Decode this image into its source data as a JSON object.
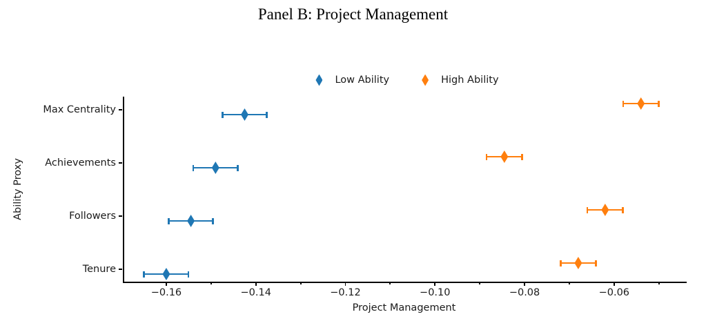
{
  "chart_data": {
    "type": "scatter",
    "title": "Panel B: Project Management",
    "xlabel": "Project Management",
    "ylabel": "Ability Proxy",
    "categories": [
      "Max Centrality",
      "Achievements",
      "Followers",
      "Tenure"
    ],
    "xlim": [
      -0.1697,
      -0.0441
    ],
    "xticks": [
      {
        "value": -0.16,
        "label": "−0.16"
      },
      {
        "value": -0.14,
        "label": "−0.14"
      },
      {
        "value": -0.12,
        "label": "−0.12"
      },
      {
        "value": -0.1,
        "label": "−0.10"
      },
      {
        "value": -0.08,
        "label": "−0.08"
      },
      {
        "value": -0.06,
        "label": "−0.06"
      }
    ],
    "xminorticks": [
      -0.15,
      -0.13,
      -0.11,
      -0.09,
      -0.07,
      -0.05
    ],
    "grid": false,
    "legend_position": "top-center",
    "marker_style": "thin-diamond",
    "series": [
      {
        "name": "Low Ability",
        "color": "#1f77b4",
        "points": [
          {
            "category": "Max Centrality",
            "value": -0.1425,
            "ci_low": -0.1475,
            "ci_high": -0.1375
          },
          {
            "category": "Achievements",
            "value": -0.149,
            "ci_low": -0.154,
            "ci_high": -0.144
          },
          {
            "category": "Followers",
            "value": -0.1545,
            "ci_low": -0.1595,
            "ci_high": -0.1495
          },
          {
            "category": "Tenure",
            "value": -0.16,
            "ci_low": -0.165,
            "ci_high": -0.155
          }
        ]
      },
      {
        "name": "High Ability",
        "color": "#ff7f0e",
        "points": [
          {
            "category": "Max Centrality",
            "value": -0.054,
            "ci_low": -0.058,
            "ci_high": -0.05
          },
          {
            "category": "Achievements",
            "value": -0.0845,
            "ci_low": -0.0885,
            "ci_high": -0.0805
          },
          {
            "category": "Followers",
            "value": -0.062,
            "ci_low": -0.066,
            "ci_high": -0.058
          },
          {
            "category": "Tenure",
            "value": -0.068,
            "ci_low": -0.072,
            "ci_high": -0.064
          }
        ]
      }
    ]
  }
}
